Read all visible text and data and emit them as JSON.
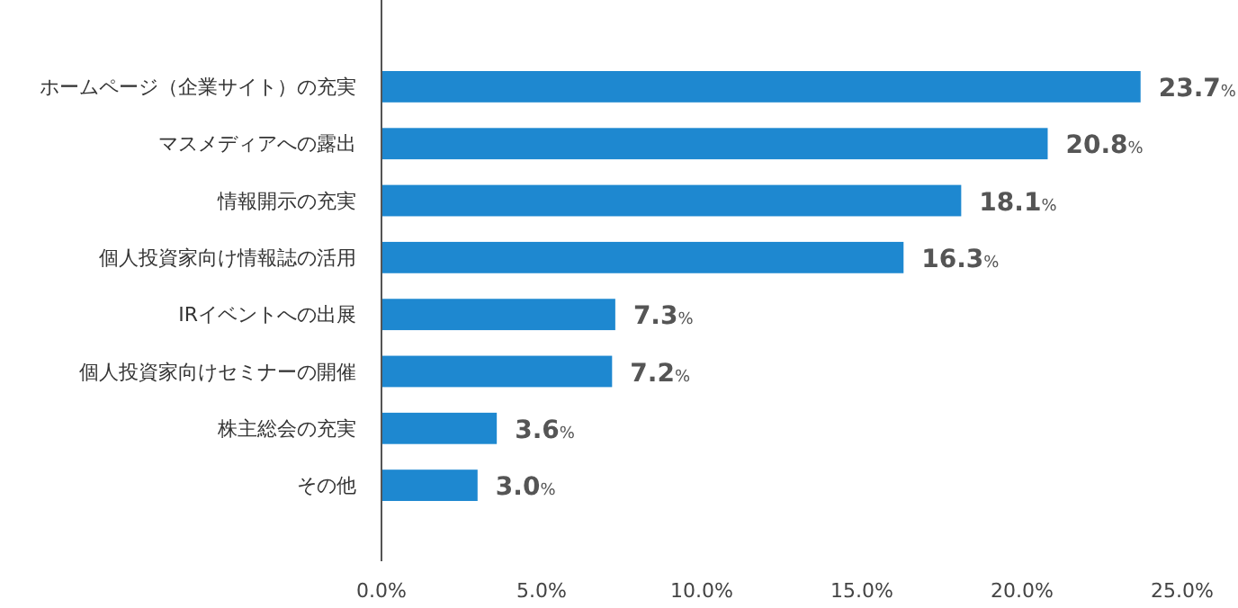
{
  "chart_data": {
    "type": "bar",
    "orientation": "horizontal",
    "categories": [
      "ホームページ（企業サイト）の充実",
      "マスメディアへの露出",
      "情報開示の充実",
      "個人投資家向け情報誌の活用",
      "IRイベントへの出展",
      "個人投資家向けセミナーの開催",
      "株主総会の充実",
      "その他"
    ],
    "values": [
      23.7,
      20.8,
      18.1,
      16.3,
      7.3,
      7.2,
      3.6,
      3.0
    ],
    "value_labels": [
      "23.7%",
      "20.8%",
      "18.1%",
      "16.3%",
      "7.3%",
      "7.2%",
      "3.6%",
      "3.0%"
    ],
    "color": "#1e88d0",
    "xlim": [
      0,
      25
    ],
    "xticks": [
      {
        "value": 0,
        "label": "0.0%"
      },
      {
        "value": 5,
        "label": "5.0%"
      },
      {
        "value": 10,
        "label": "10.0%"
      },
      {
        "value": 15,
        "label": "15.0%"
      },
      {
        "value": 20,
        "label": "20.0%"
      },
      {
        "value": 25,
        "label": "25.0%"
      }
    ],
    "grid": false
  }
}
